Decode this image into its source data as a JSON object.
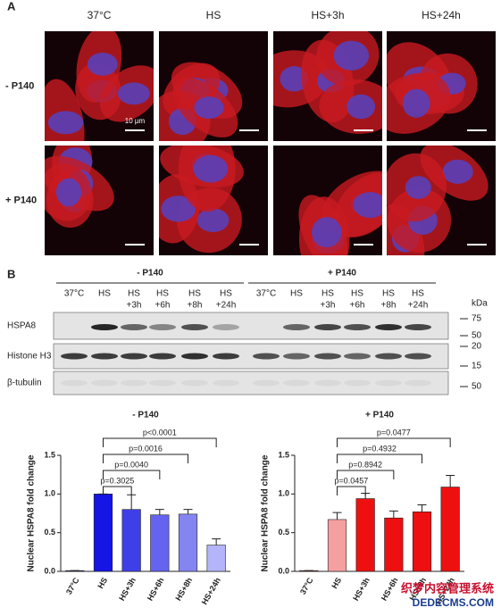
{
  "panel_a": {
    "letter": "A",
    "columns": [
      "37°C",
      "HS",
      "HS+3h",
      "HS+24h"
    ],
    "rows": [
      "- P140",
      "+ P140"
    ],
    "scale_bar": "10 µm"
  },
  "panel_b": {
    "letter": "B",
    "groups": [
      {
        "label": "- P140",
        "lanes": [
          [
            "37°C"
          ],
          [
            "HS"
          ],
          [
            "HS",
            "+3h"
          ],
          [
            "HS",
            "+6h"
          ],
          [
            "HS",
            "+8h"
          ],
          [
            "HS",
            "+24h"
          ]
        ]
      },
      {
        "label": "+ P140",
        "lanes": [
          [
            "37°C"
          ],
          [
            "HS"
          ],
          [
            "HS",
            "+3h"
          ],
          [
            "HS",
            "+6h"
          ],
          [
            "HS",
            "+8h"
          ],
          [
            "HS",
            "+24h"
          ]
        ]
      }
    ],
    "unit": "kDa",
    "blots": [
      {
        "label": "HSPA8",
        "markers": [
          "75",
          "50"
        ]
      },
      {
        "label": "Histone H3",
        "markers": [
          "20",
          "15"
        ]
      },
      {
        "label": "β-tubulin",
        "markers": [
          "50"
        ]
      }
    ]
  },
  "chart_data": [
    {
      "type": "bar",
      "title": "- P140",
      "y_label": "Nuclear HSPA8 fold change",
      "categories": [
        "37°C",
        "HS",
        "HS+3h",
        "HS+6h",
        "HS+8h",
        "HS+24h"
      ],
      "values": [
        0.01,
        1.0,
        0.8,
        0.73,
        0.74,
        0.34
      ],
      "errors": [
        0,
        0,
        0.19,
        0.07,
        0.06,
        0.08
      ],
      "colors": [
        "#10107a",
        "#1515e6",
        "#3f3fea",
        "#6464f0",
        "#8585f2",
        "#b4b4fa"
      ],
      "ylim": [
        0,
        1.5
      ],
      "yticks": [
        {
          "value": 0,
          "label": "0.0"
        },
        0.5,
        {
          "value": 1,
          "label": "1.0"
        },
        1.5
      ],
      "annotations": [
        "p=0.3025",
        "p=0.0040",
        "p=0.0016",
        "p<0.0001"
      ]
    },
    {
      "type": "bar",
      "title": "+ P140",
      "y_label": "Nuclear HSPA8 fold change",
      "categories": [
        "37°C",
        "HS",
        "HS+3h",
        "HS+6h",
        "HS+8h",
        "HS+24h"
      ],
      "values": [
        0.01,
        0.67,
        0.94,
        0.69,
        0.77,
        1.09
      ],
      "errors": [
        0,
        0.09,
        0.07,
        0.09,
        0.09,
        0.15
      ],
      "colors": [
        "#8b1010",
        "#f4a0a0",
        "#ee1010",
        "#ee1010",
        "#ee1010",
        "#ee1010"
      ],
      "ylim": [
        0,
        1.5
      ],
      "yticks": [
        {
          "value": 0,
          "label": "0.0"
        },
        0.5,
        {
          "value": 1,
          "label": "1.0"
        },
        1.5
      ],
      "annotations": [
        "p=0.0457",
        "p=0.8942",
        "p=0.4932",
        "p=0.0477"
      ]
    }
  ],
  "watermark": [
    "织梦内容管理系统",
    "DEDECMS.COM"
  ]
}
